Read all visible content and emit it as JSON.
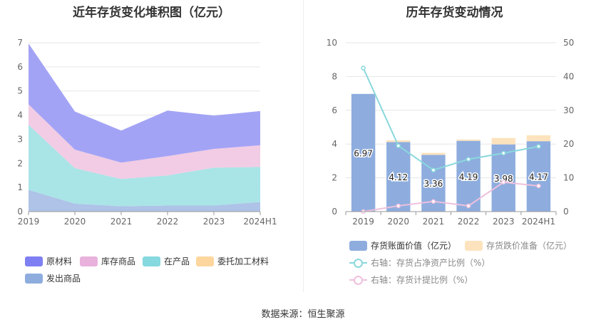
{
  "left_title": "近年存货变化堆积图（亿元）",
  "right_title": "历年存货变动情况",
  "source": "数据来源：恒生聚源",
  "chart_data": [
    {
      "type": "area",
      "stacked": true,
      "title": "近年存货变化堆积图（亿元）",
      "categories": [
        "2019",
        "2020",
        "2021",
        "2022",
        "2023",
        "2024H1"
      ],
      "ylim": [
        0,
        7
      ],
      "yticks": [
        0,
        1,
        2,
        3,
        4,
        5,
        6,
        7
      ],
      "grid": true,
      "legend_position": "bottom",
      "series": [
        {
          "name": "发出商品",
          "color": "#aac0e6",
          "values": [
            0.9,
            0.33,
            0.22,
            0.25,
            0.25,
            0.4
          ]
        },
        {
          "name": "委托加工材料",
          "color": "#fdd69e",
          "values": [
            0.0,
            0.0,
            0.0,
            0.0,
            0.0,
            0.0
          ]
        },
        {
          "name": "在产品",
          "color": "#a4e3e6",
          "values": [
            2.7,
            1.47,
            1.13,
            1.25,
            1.57,
            1.45
          ]
        },
        {
          "name": "库存商品",
          "color": "#f0c9e3",
          "values": [
            0.85,
            0.77,
            0.68,
            0.8,
            0.78,
            0.9
          ]
        },
        {
          "name": "原材料",
          "color": "#9e9ef5",
          "values": [
            2.52,
            1.58,
            1.33,
            1.89,
            1.38,
            1.42
          ]
        }
      ],
      "legend": [
        {
          "name": "原材料",
          "color": "#7f7ff4"
        },
        {
          "name": "库存商品",
          "color": "#e9b2dc"
        },
        {
          "name": "在产品",
          "color": "#85d9df"
        },
        {
          "name": "委托加工材料",
          "color": "#fdd69e"
        },
        {
          "name": "发出商品",
          "color": "#8eadde"
        }
      ]
    },
    {
      "type": "bar",
      "title": "历年存货变动情况",
      "categories": [
        "2019",
        "2020",
        "2021",
        "2022",
        "2023",
        "2024H1"
      ],
      "ylim": [
        0,
        10
      ],
      "yticks": [
        0,
        2,
        4,
        6,
        8,
        10
      ],
      "y2lim": [
        0,
        50
      ],
      "y2ticks": [
        0,
        10,
        20,
        30,
        40,
        50
      ],
      "grid": true,
      "legend_position": "bottom",
      "series": [
        {
          "name": "存货账面价值（亿元）",
          "type": "bar",
          "axis": "left",
          "color": "#8eadde",
          "values": [
            6.97,
            4.12,
            3.36,
            4.19,
            3.98,
            4.17
          ],
          "labels": [
            "6.97",
            "4.12",
            "3.36",
            "4.19",
            "3.98",
            "4.17"
          ]
        },
        {
          "name": "存货跌价准备（亿元）",
          "type": "bar",
          "axis": "left",
          "color": "#fde3bd",
          "values": [
            0.0,
            0.1,
            0.12,
            0.08,
            0.38,
            0.35
          ]
        },
        {
          "name": "右轴：存货占净资产比例（%）",
          "type": "line",
          "axis": "right",
          "color": "#8ad8dd",
          "values": [
            42.5,
            19.5,
            12.3,
            15.5,
            17.3,
            19.3
          ]
        },
        {
          "name": "右轴：存货计提比例（%）",
          "type": "line",
          "axis": "right",
          "color": "#eec0dd",
          "values": [
            0.0,
            1.7,
            3.0,
            1.7,
            8.7,
            7.6
          ]
        }
      ]
    }
  ]
}
